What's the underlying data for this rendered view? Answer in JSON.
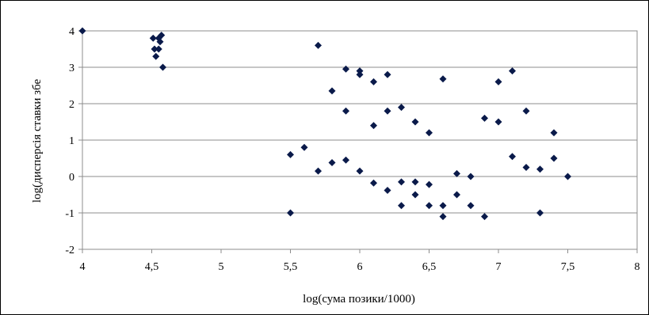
{
  "chart_data": {
    "type": "scatter",
    "title": "",
    "xlabel": "log(сума позики/1000)",
    "ylabel": "log(дисперсія ставки збе",
    "xlim": [
      4,
      8
    ],
    "ylim": [
      -2,
      4
    ],
    "x_ticks": [
      "4",
      "4,5",
      "5",
      "5,5",
      "6",
      "6,5",
      "7",
      "7,5",
      "8"
    ],
    "y_ticks": [
      "-2",
      "-1",
      "0",
      "1",
      "2",
      "3",
      "4"
    ],
    "grid": "horizontal",
    "legend": "none",
    "marker": "diamond",
    "colors": {
      "marker": "#0a1a4a",
      "grid": "#8c8c8c",
      "axis": "#8c8c8c",
      "plot_border": "#8c8c8c"
    },
    "points": [
      {
        "x": 4.0,
        "y": 4.0
      },
      {
        "x": 4.51,
        "y": 3.8
      },
      {
        "x": 4.55,
        "y": 3.8
      },
      {
        "x": 4.57,
        "y": 3.88
      },
      {
        "x": 4.56,
        "y": 3.7
      },
      {
        "x": 4.52,
        "y": 3.5
      },
      {
        "x": 4.55,
        "y": 3.5
      },
      {
        "x": 4.53,
        "y": 3.3
      },
      {
        "x": 4.58,
        "y": 3.0
      },
      {
        "x": 5.7,
        "y": 3.6
      },
      {
        "x": 5.9,
        "y": 2.95
      },
      {
        "x": 6.0,
        "y": 2.9
      },
      {
        "x": 6.0,
        "y": 2.8
      },
      {
        "x": 6.1,
        "y": 2.6
      },
      {
        "x": 6.2,
        "y": 2.8
      },
      {
        "x": 6.6,
        "y": 2.68
      },
      {
        "x": 7.1,
        "y": 2.9
      },
      {
        "x": 7.0,
        "y": 2.6
      },
      {
        "x": 5.8,
        "y": 2.35
      },
      {
        "x": 5.9,
        "y": 1.8
      },
      {
        "x": 6.1,
        "y": 1.4
      },
      {
        "x": 6.2,
        "y": 1.8
      },
      {
        "x": 6.3,
        "y": 1.9
      },
      {
        "x": 6.4,
        "y": 1.5
      },
      {
        "x": 6.5,
        "y": 1.2
      },
      {
        "x": 6.9,
        "y": 1.6
      },
      {
        "x": 7.0,
        "y": 1.5
      },
      {
        "x": 7.2,
        "y": 1.8
      },
      {
        "x": 7.4,
        "y": 1.2
      },
      {
        "x": 5.5,
        "y": 0.6
      },
      {
        "x": 5.6,
        "y": 0.8
      },
      {
        "x": 5.7,
        "y": 0.15
      },
      {
        "x": 5.8,
        "y": 0.38
      },
      {
        "x": 5.9,
        "y": 0.45
      },
      {
        "x": 6.0,
        "y": 0.15
      },
      {
        "x": 6.1,
        "y": -0.18
      },
      {
        "x": 6.2,
        "y": -0.38
      },
      {
        "x": 6.3,
        "y": -0.15
      },
      {
        "x": 6.4,
        "y": -0.15
      },
      {
        "x": 6.5,
        "y": -0.22
      },
      {
        "x": 6.7,
        "y": 0.08
      },
      {
        "x": 6.8,
        "y": 0.0
      },
      {
        "x": 7.1,
        "y": 0.55
      },
      {
        "x": 7.2,
        "y": 0.25
      },
      {
        "x": 7.3,
        "y": 0.2
      },
      {
        "x": 7.4,
        "y": 0.5
      },
      {
        "x": 7.5,
        "y": 0.0
      },
      {
        "x": 6.4,
        "y": -0.5
      },
      {
        "x": 6.7,
        "y": -0.5
      },
      {
        "x": 6.3,
        "y": -0.8
      },
      {
        "x": 6.5,
        "y": -0.8
      },
      {
        "x": 6.6,
        "y": -0.8
      },
      {
        "x": 6.8,
        "y": -0.8
      },
      {
        "x": 6.6,
        "y": -1.1
      },
      {
        "x": 6.9,
        "y": -1.1
      },
      {
        "x": 5.5,
        "y": -1.0
      },
      {
        "x": 7.3,
        "y": -1.0
      }
    ]
  }
}
